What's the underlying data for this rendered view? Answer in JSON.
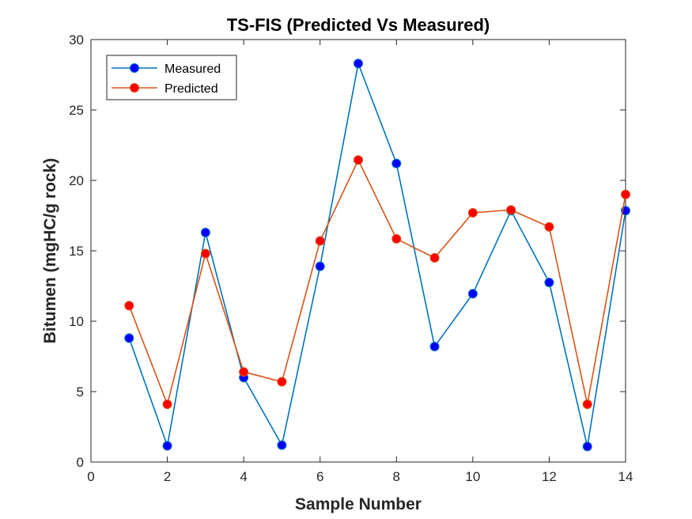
{
  "chart_data": {
    "type": "line",
    "title": "TS-FIS (Predicted Vs Measured)",
    "xlabel": "Sample Number",
    "ylabel": "Bitumen (mgHC/g rock)",
    "xlim": [
      0,
      14
    ],
    "ylim": [
      0,
      30
    ],
    "xticks": [
      0,
      2,
      4,
      6,
      8,
      10,
      12,
      14
    ],
    "yticks": [
      0,
      5,
      10,
      15,
      20,
      25,
      30
    ],
    "grid": false,
    "legend_position": "top-left",
    "x": [
      1,
      2,
      3,
      4,
      5,
      6,
      7,
      8,
      9,
      10,
      11,
      12,
      13,
      14
    ],
    "series": [
      {
        "name": "Measured",
        "line_color": "#0072BD",
        "marker_color": "#0000FF",
        "values": [
          8.8,
          1.15,
          16.3,
          6.0,
          1.2,
          13.9,
          28.3,
          21.2,
          8.2,
          11.95,
          17.85,
          12.75,
          1.1,
          17.85
        ]
      },
      {
        "name": "Predicted",
        "line_color": "#D95319",
        "marker_color": "#FF0000",
        "values": [
          11.1,
          4.1,
          14.8,
          6.4,
          5.7,
          15.7,
          21.45,
          15.85,
          14.5,
          17.7,
          17.9,
          16.7,
          4.1,
          19.0
        ]
      }
    ]
  }
}
